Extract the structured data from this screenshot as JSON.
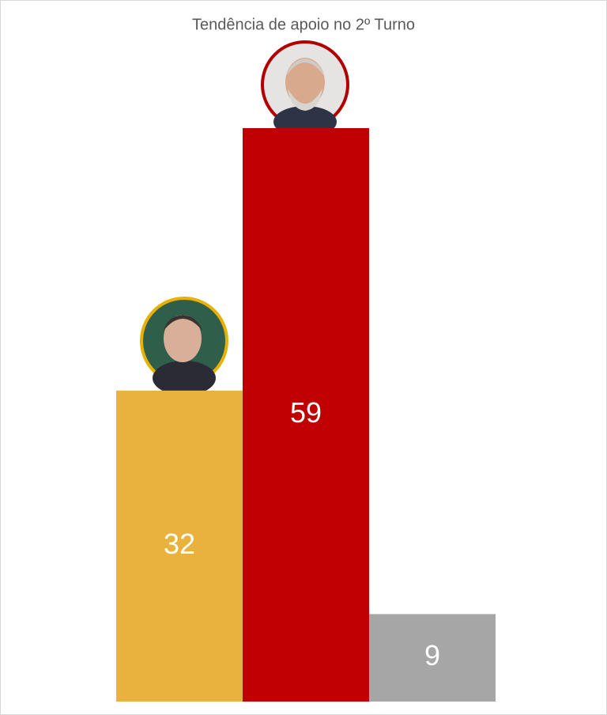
{
  "chart_data": {
    "type": "bar",
    "title": "Tendência de apoio no 2º Turno",
    "categories": [
      null,
      null,
      null
    ],
    "values": [
      32,
      59,
      9
    ],
    "colors": [
      "#e8b23c",
      "#c00000",
      "#a6a6a6"
    ]
  }
}
